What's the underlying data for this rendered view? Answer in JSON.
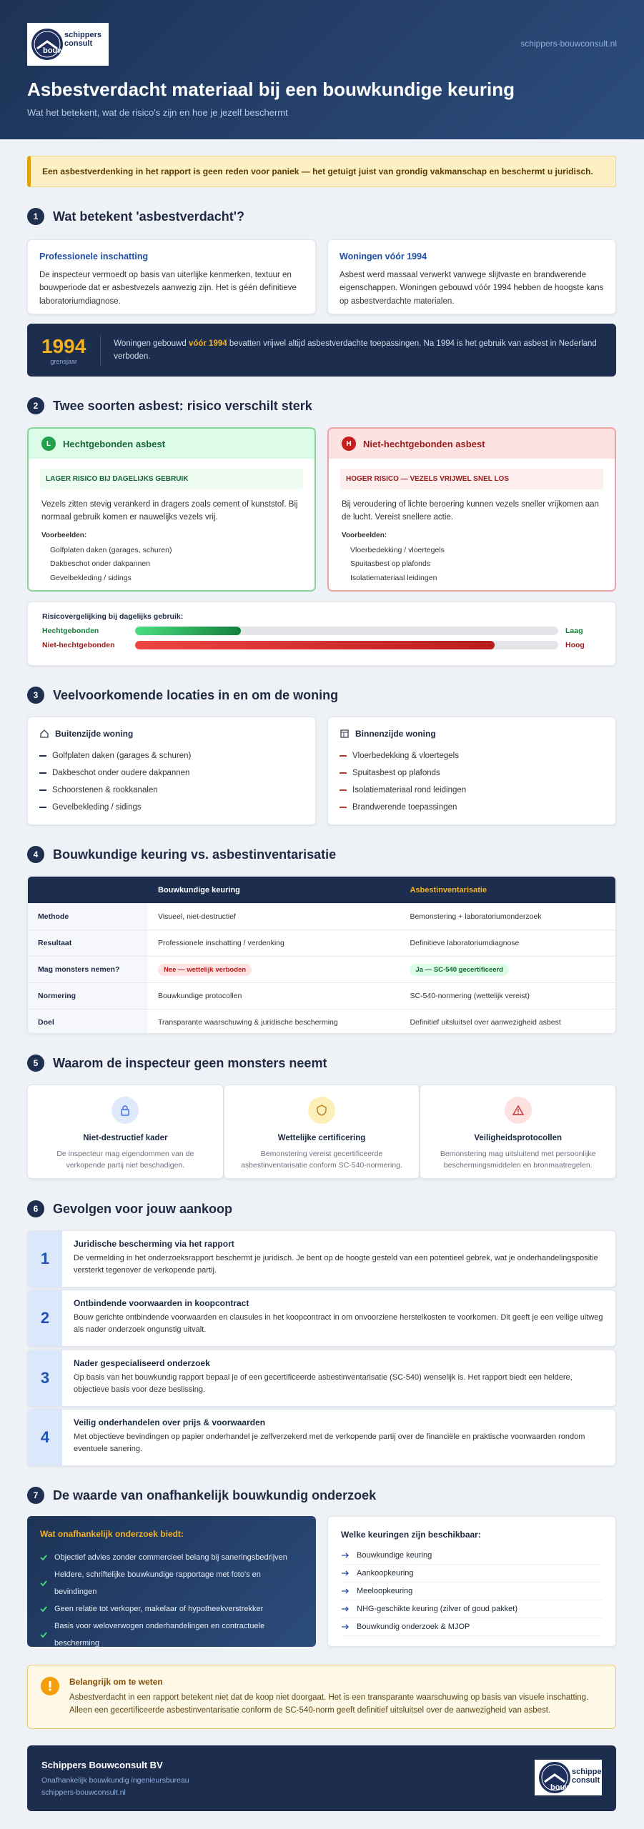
{
  "header": {
    "logo": [
      "schippers",
      "bouw",
      "consult"
    ],
    "link": "schippers-bouwconsult.nl",
    "title": "Asbestverdacht materiaal bij een bouwkundige keuring",
    "subtitle": "Wat het betekent, wat de risico's zijn en hoe je jezelf beschermt"
  },
  "alert": "Een asbestverdenking in het rapport is geen reden voor paniek — het getuigt juist van grondig vakmanschap en beschermt u juridisch.",
  "section1": {
    "number": "1",
    "title": "Wat betekent 'asbestverdacht'?",
    "cards": [
      {
        "title": "Professionele inschatting",
        "text": "De inspecteur vermoedt op basis van uiterlijke kenmerken, textuur en bouwperiode dat er asbestvezels aanwezig zijn. Het is géén definitieve laboratoriumdiagnose."
      },
      {
        "title": "Woningen vóór 1994",
        "text": "Asbest werd massaal verwerkt vanwege slijtvaste en brandwerende eigenschappen. Woningen gebouwd vóór 1994 hebben de hoogste kans op asbestverdachte materialen."
      }
    ],
    "banner": {
      "year": "1994",
      "year_label": "grensjaar",
      "text_before": "Woningen gebouwd ",
      "highlight": "vóór 1994",
      "text_after": " bevatten vrijwel altijd asbestverdachte toepassingen. Na 1994 is het gebruik van asbest in Nederland verboden."
    }
  },
  "section2": {
    "number": "2",
    "title": "Twee soorten asbest: risico verschilt sterk",
    "cards": [
      {
        "badge": "L",
        "title": "Hechtgebonden asbest",
        "tag": "LAGER RISICO BIJ DAGELIJKS GEBRUIK",
        "text": "Vezels zitten stevig verankerd in dragers zoals cement of kunststof. Bij normaal gebruik komen er nauwelijks vezels vrij.",
        "examples_label": "Voorbeelden:",
        "items": [
          "Golfplaten daken (garages, schuren)",
          "Dakbeschot onder dakpannen",
          "Gevelbekleding / sidings"
        ]
      },
      {
        "badge": "H",
        "title": "Niet-hechtgebonden asbest",
        "tag": "HOGER RISICO — VEZELS VRIJWEL SNEL LOS",
        "text": "Bij veroudering of lichte beroering kunnen vezels sneller vrijkomen aan de lucht. Vereist snellere actie.",
        "examples_label": "Voorbeelden:",
        "items": [
          "Vloerbedekking / vloertegels",
          "Spuitasbest op plafonds",
          "Isolatiemateriaal leidingen"
        ]
      }
    ],
    "comparison": {
      "title": "Risicovergelijking bij dagelijks gebruik:",
      "rows": [
        {
          "label": "Hechtgebonden",
          "value": 25,
          "level": "Laag"
        },
        {
          "label": "Niet-hechtgebonden",
          "value": 85,
          "level": "Hoog"
        }
      ]
    }
  },
  "section3": {
    "number": "3",
    "title": "Veelvoorkomende locaties in en om de woning",
    "cards": [
      {
        "title": "Buitenzijde woning",
        "items": [
          "Golfplaten daken (garages & schuren)",
          "Dakbeschot onder oudere dakpannen",
          "Schoorstenen & rookkanalen",
          "Gevelbekleding / sidings"
        ]
      },
      {
        "title": "Binnenzijde woning",
        "items": [
          "Vloerbedekking & vloertegels",
          "Spuitasbest op plafonds",
          "Isolatiemateriaal rond leidingen",
          "Brandwerende toepassingen"
        ]
      }
    ]
  },
  "section4": {
    "number": "4",
    "title": "Bouwkundige keuring vs. asbestinventarisatie",
    "columns": [
      "Bouwkundige keuring",
      "Asbestinventarisatie"
    ],
    "rows": [
      [
        "Methode",
        "Visueel, niet-destructief",
        "Bemonstering + laboratoriumonderzoek"
      ],
      [
        "Resultaat",
        "Professionele inschatting / verdenking",
        "Definitieve laboratoriumdiagnose"
      ],
      [
        "Mag monsters nemen?",
        "Nee — wettelijk verboden",
        "Ja — SC-540 gecertificeerd"
      ],
      [
        "Normering",
        "Bouwkundige protocollen",
        "SC-540-normering (wettelijk vereist)"
      ],
      [
        "Doel",
        "Transparante waarschuwing & juridische bescherming",
        "Definitief uitsluitsel over aanwezigheid asbest"
      ]
    ]
  },
  "section5": {
    "number": "5",
    "title": "Waarom de inspecteur geen monsters neemt",
    "cards": [
      {
        "title": "Niet-destructief kader",
        "text": "De inspecteur mag eigendommen van de verkopende partij niet beschadigen."
      },
      {
        "title": "Wettelijke certificering",
        "text": "Bemonstering vereist gecertificeerde asbestinventarisatie conform SC-540-normering."
      },
      {
        "title": "Veiligheidsprotocollen",
        "text": "Bemonstering mag uitsluitend met persoonlijke beschermingsmiddelen en bronmaatregelen."
      }
    ]
  },
  "section6": {
    "number": "6",
    "title": "Gevolgen voor jouw aankoop",
    "steps": [
      {
        "number": "1",
        "title": "Juridische bescherming via het rapport",
        "text": "De vermelding in het onderzoeksrapport beschermt je juridisch. Je bent op de hoogte gesteld van een potentieel gebrek, wat je onderhandelingspositie versterkt tegenover de verkopende partij."
      },
      {
        "number": "2",
        "title": "Ontbindende voorwaarden in koopcontract",
        "text": "Bouw gerichte ontbindende voorwaarden en clausules in het koopcontract in om onvoorziene herstelkosten te voorkomen. Dit geeft je een veilige uitweg als nader onderzoek ongunstig uitvalt."
      },
      {
        "number": "3",
        "title": "Nader gespecialiseerd onderzoek",
        "text": "Op basis van het bouwkundig rapport bepaal je of een gecertificeerde asbestinventarisatie (SC-540) wenselijk is. Het rapport biedt een heldere, objectieve basis voor deze beslissing."
      },
      {
        "number": "4",
        "title": "Veilig onderhandelen over prijs & voorwaarden",
        "text": "Met objectieve bevindingen op papier onderhandel je zelfverzekerd met de verkopende partij over de financiële en praktische voorwaarden rondom eventuele sanering."
      }
    ]
  },
  "section7": {
    "number": "7",
    "title": "De waarde van onafhankelijk bouwkundig onderzoek",
    "offers": {
      "title": "Wat onafhankelijk onderzoek biedt:",
      "items": [
        "Objectief advies zonder commercieel belang bij saneringsbedrijven",
        "Heldere, schriftelijke bouwkundige rapportage met foto's en bevindingen",
        "Geen relatie tot verkoper, makelaar of hypotheekverstrekker",
        "Basis voor weloverwogen onderhandelingen en contractuele bescherming"
      ]
    },
    "inspections": {
      "title": "Welke keuringen zijn beschikbaar:",
      "items": [
        "Bouwkundige keuring",
        "Aankoopkeuring",
        "Meeloopkeuring",
        "NHG-geschikte keuring (zilver of goud pakket)",
        "Bouwkundig onderzoek & MJOP"
      ]
    }
  },
  "note": {
    "title": "Belangrijk om te weten",
    "text": "Asbestverdacht in een rapport betekent niet dat de koop niet doorgaat. Het is een transparante waarschuwing op basis van visuele inschatting. Alleen een gecertificeerde asbestinventarisatie conform de SC-540-norm geeft definitief uitsluitsel over de aanwezigheid van asbest."
  },
  "footer": {
    "name": "Schippers Bouwconsult BV",
    "tagline": "Onafhankelijk bouwkundig ingenieursbureau",
    "link": "schippers-bouwconsult.nl",
    "logo": [
      "schippers",
      "bouw",
      "consult"
    ]
  }
}
